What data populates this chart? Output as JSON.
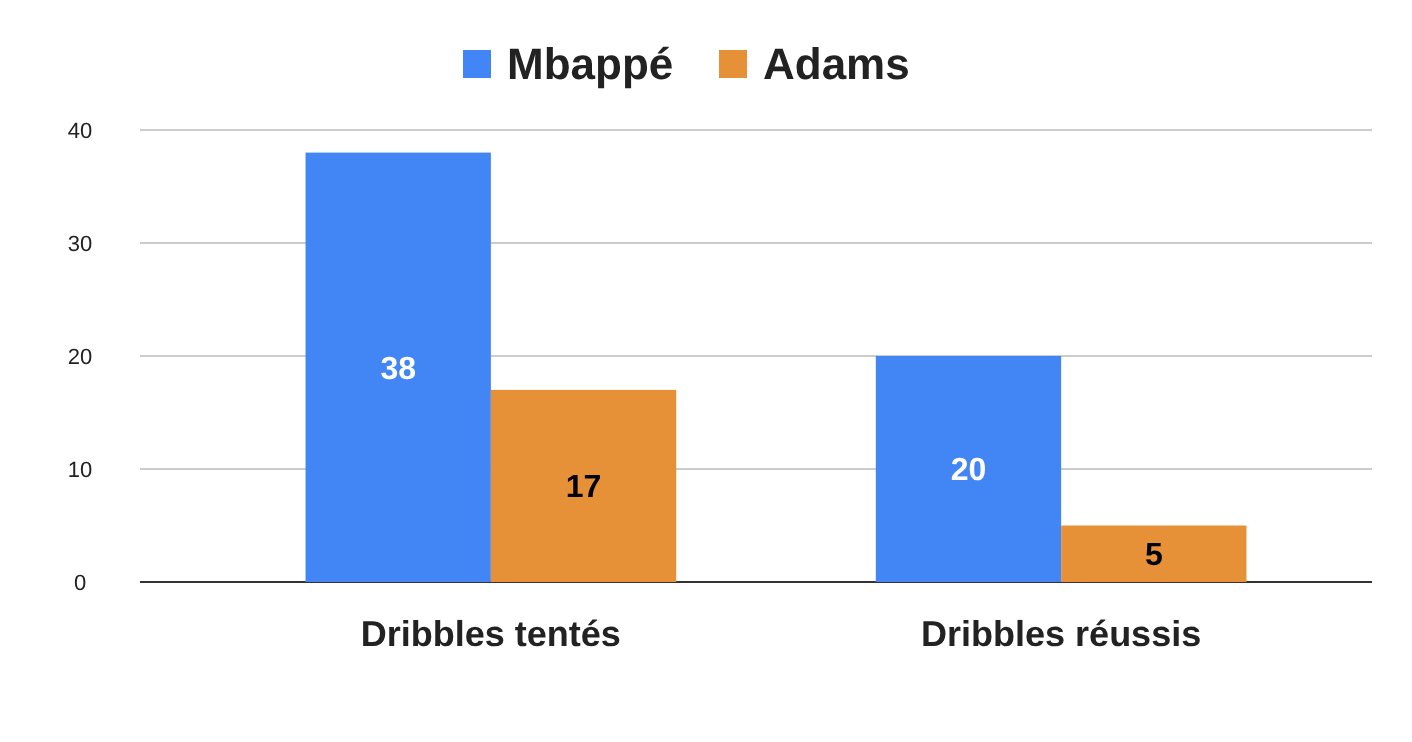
{
  "chart_data": {
    "type": "bar",
    "categories": [
      "Dribbles tentés",
      "Dribbles réussis"
    ],
    "series": [
      {
        "name": "Mbappé",
        "color": "#4285f4",
        "values": [
          38,
          20
        ]
      },
      {
        "name": "Adams",
        "color": "#e69138",
        "values": [
          17,
          5
        ]
      }
    ],
    "ylim": [
      0,
      40
    ],
    "yticks": [
      0,
      10,
      20,
      30,
      40
    ],
    "grid": "y",
    "legend": "top",
    "data_labels": true
  }
}
